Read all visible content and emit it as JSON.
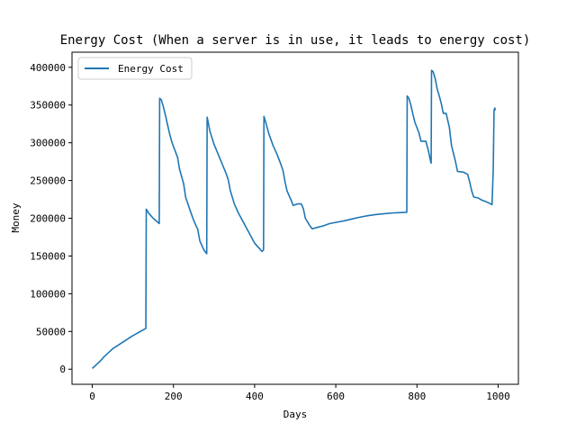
{
  "chart_data": {
    "type": "line",
    "title": "Energy Cost (When a server is in use, it leads to energy cost)",
    "xlabel": "Days",
    "ylabel": "Money",
    "xlim": [
      -50,
      1050
    ],
    "ylim": [
      -20000,
      420000
    ],
    "xticks": [
      0,
      200,
      400,
      600,
      800,
      1000
    ],
    "yticks": [
      0,
      50000,
      100000,
      150000,
      200000,
      250000,
      300000,
      350000,
      400000
    ],
    "legend": {
      "position": "upper-left"
    },
    "grid": false,
    "series": [
      {
        "name": "Energy Cost",
        "color": "#1f77b4",
        "points": [
          [
            0,
            1000
          ],
          [
            10,
            6000
          ],
          [
            20,
            11000
          ],
          [
            30,
            17000
          ],
          [
            40,
            22000
          ],
          [
            50,
            27000
          ],
          [
            60,
            30500
          ],
          [
            70,
            34000
          ],
          [
            80,
            37500
          ],
          [
            90,
            41000
          ],
          [
            100,
            44500
          ],
          [
            110,
            47500
          ],
          [
            120,
            50500
          ],
          [
            132,
            54000
          ],
          [
            133,
            212000
          ],
          [
            140,
            206000
          ],
          [
            150,
            200000
          ],
          [
            165,
            193000
          ],
          [
            166,
            359000
          ],
          [
            170,
            357000
          ],
          [
            175,
            348000
          ],
          [
            180,
            337000
          ],
          [
            185,
            325000
          ],
          [
            190,
            313000
          ],
          [
            195,
            303000
          ],
          [
            200,
            295000
          ],
          [
            210,
            281000
          ],
          [
            215,
            265000
          ],
          [
            225,
            246000
          ],
          [
            230,
            228000
          ],
          [
            240,
            212000
          ],
          [
            250,
            197000
          ],
          [
            260,
            185000
          ],
          [
            265,
            170000
          ],
          [
            275,
            158000
          ],
          [
            282,
            153000
          ],
          [
            283,
            334000
          ],
          [
            290,
            315000
          ],
          [
            300,
            298000
          ],
          [
            310,
            285000
          ],
          [
            320,
            272000
          ],
          [
            330,
            259000
          ],
          [
            335,
            251000
          ],
          [
            340,
            237000
          ],
          [
            350,
            219000
          ],
          [
            360,
            207000
          ],
          [
            370,
            197000
          ],
          [
            380,
            187000
          ],
          [
            390,
            177000
          ],
          [
            400,
            167000
          ],
          [
            410,
            161000
          ],
          [
            418,
            156000
          ],
          [
            422,
            158000
          ],
          [
            423,
            335000
          ],
          [
            428,
            326000
          ],
          [
            435,
            312000
          ],
          [
            445,
            297000
          ],
          [
            455,
            285000
          ],
          [
            465,
            271000
          ],
          [
            470,
            263000
          ],
          [
            475,
            248000
          ],
          [
            480,
            236000
          ],
          [
            490,
            224000
          ],
          [
            495,
            217000
          ],
          [
            505,
            219000
          ],
          [
            515,
            219000
          ],
          [
            520,
            213000
          ],
          [
            525,
            200000
          ],
          [
            535,
            191000
          ],
          [
            542,
            186000
          ],
          [
            555,
            188000
          ],
          [
            570,
            190000
          ],
          [
            585,
            193000
          ],
          [
            600,
            194500
          ],
          [
            620,
            196500
          ],
          [
            640,
            199000
          ],
          [
            660,
            201500
          ],
          [
            680,
            203500
          ],
          [
            700,
            205000
          ],
          [
            720,
            206000
          ],
          [
            740,
            207000
          ],
          [
            760,
            207500
          ],
          [
            775,
            208000
          ],
          [
            776,
            362000
          ],
          [
            780,
            359000
          ],
          [
            785,
            350000
          ],
          [
            790,
            338000
          ],
          [
            795,
            327000
          ],
          [
            805,
            313000
          ],
          [
            810,
            302000
          ],
          [
            822,
            302000
          ],
          [
            828,
            290000
          ],
          [
            833,
            277000
          ],
          [
            835,
            273000
          ],
          [
            836,
            396000
          ],
          [
            840,
            394000
          ],
          [
            845,
            385000
          ],
          [
            850,
            371000
          ],
          [
            855,
            362000
          ],
          [
            860,
            352000
          ],
          [
            865,
            339000
          ],
          [
            872,
            339000
          ],
          [
            880,
            320000
          ],
          [
            885,
            297000
          ],
          [
            895,
            275000
          ],
          [
            900,
            262000
          ],
          [
            915,
            261000
          ],
          [
            925,
            258000
          ],
          [
            930,
            248000
          ],
          [
            935,
            236000
          ],
          [
            940,
            228000
          ],
          [
            950,
            227000
          ],
          [
            960,
            224000
          ],
          [
            970,
            222000
          ],
          [
            978,
            220000
          ],
          [
            985,
            218000
          ],
          [
            988,
            264000
          ],
          [
            990,
            343000
          ],
          [
            992,
            346000
          ],
          [
            993,
            343000
          ]
        ]
      }
    ]
  }
}
